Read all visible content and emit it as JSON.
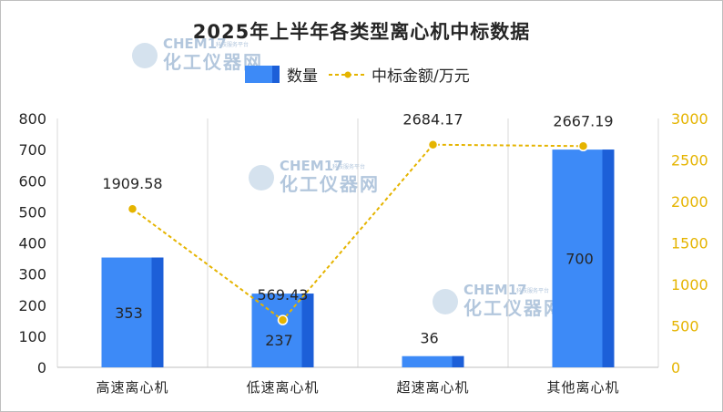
{
  "chart_data": {
    "type": "bar",
    "title": "2025年上半年各类型离心机中标数据",
    "categories": [
      "高速离心机",
      "低速离心机",
      "超速离心机",
      "其他离心机"
    ],
    "series": [
      {
        "name": "数量",
        "type": "bar",
        "axis": "left",
        "color": "#3d8af7",
        "values": [
          353,
          237,
          36,
          700
        ],
        "labels": [
          "353",
          "237",
          "36",
          "700"
        ]
      },
      {
        "name": "中标金额/万元",
        "type": "line",
        "axis": "right",
        "color": "#e5b400",
        "values": [
          1909.58,
          569.43,
          2684.17,
          2667.19
        ],
        "labels": [
          "1909.58",
          "569.43",
          "2684.17",
          "2667.19"
        ]
      }
    ],
    "ylim_left": [
      0,
      800
    ],
    "yticks_left": [
      "0",
      "100",
      "200",
      "300",
      "400",
      "500",
      "600",
      "700",
      "800"
    ],
    "ylim_right": [
      0,
      3000
    ],
    "yticks_right": [
      "0",
      "500",
      "1000",
      "1500",
      "2000",
      "2500",
      "3000"
    ],
    "legend_position": "top-center",
    "grid": "vertical category separators"
  },
  "watermark": {
    "brand_en": "CHEM17",
    "brand_cn": "化工仪器网",
    "tagline": "科技服务平台"
  }
}
